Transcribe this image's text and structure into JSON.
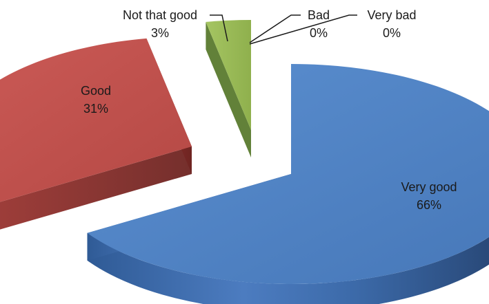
{
  "chart_data": {
    "type": "pie",
    "title": "",
    "slices": [
      {
        "name": "Very good",
        "value": 66,
        "pct_label": "66%",
        "color": "#4F81BD"
      },
      {
        "name": "Good",
        "value": 31,
        "pct_label": "31%",
        "color": "#C0504D"
      },
      {
        "name": "Not that good",
        "value": 3,
        "pct_label": "3%",
        "color": "#9BBB59"
      },
      {
        "name": "Bad",
        "value": 0,
        "pct_label": "0%",
        "color": "#8064A2"
      },
      {
        "name": "Very bad",
        "value": 0,
        "pct_label": "0%",
        "color": "#4BACC6"
      }
    ],
    "style": "3d-exploded",
    "legend": "none"
  }
}
